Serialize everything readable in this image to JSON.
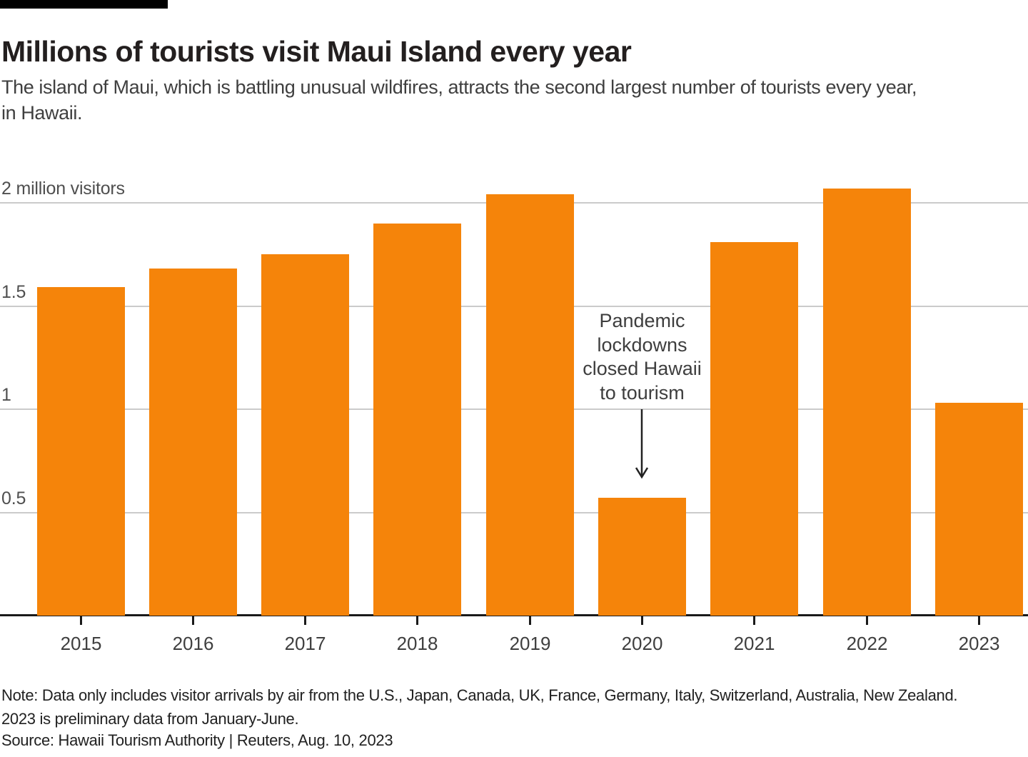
{
  "page": {
    "title": "Millions of tourists visit Maui Island every year",
    "subtitle_lines": [
      "The island of Maui, which is battling unusual wildfires, attracts the second largest number of tourists every year,",
      "in Hawaii."
    ]
  },
  "chart_data": {
    "type": "bar",
    "categories": [
      "2015",
      "2016",
      "2017",
      "2018",
      "2019",
      "2020",
      "2021",
      "2022",
      "2023"
    ],
    "values": [
      1.59,
      1.68,
      1.75,
      1.9,
      2.04,
      0.57,
      1.81,
      2.07,
      1.03
    ],
    "unit": "million visitors",
    "y_ticks": [
      {
        "value": 2,
        "label": "2 million visitors"
      },
      {
        "value": 1.5,
        "label": "1.5"
      },
      {
        "value": 1,
        "label": "1"
      },
      {
        "value": 0.5,
        "label": "0.5"
      }
    ],
    "ylim": [
      0,
      2.17
    ],
    "grid": true,
    "legend_position": "none",
    "bar_color": "#f5840a",
    "annotation": {
      "lines": [
        "Pandemic",
        "lockdowns",
        "closed Hawaii",
        "to tourism"
      ],
      "target_category": "2020"
    }
  },
  "footer": {
    "note_lines": [
      "Note: Data only includes visitor arrivals by air from the U.S., Japan, Canada, UK, France, Germany, Italy, Switzerland, Australia, New Zealand.",
      "2023 is preliminary data from January-June."
    ],
    "source": "Source: Hawaii Tourism Authority | Reuters, Aug. 10, 2023"
  }
}
